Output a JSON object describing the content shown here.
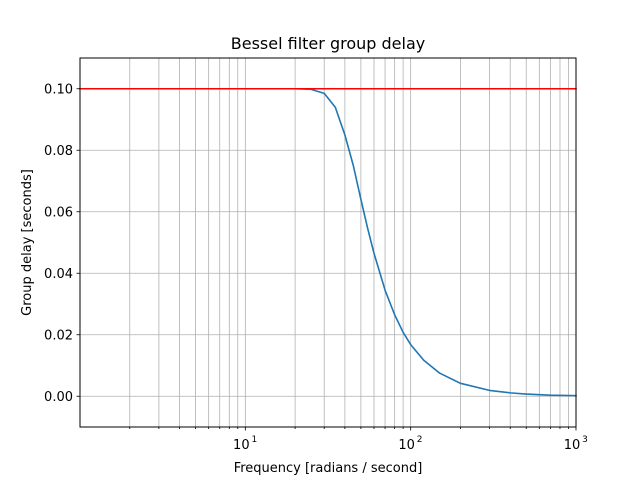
{
  "chart_data": {
    "type": "line",
    "title": "Bessel filter group delay",
    "xlabel": "Frequency [radians / second]",
    "ylabel": "Group delay [seconds]",
    "xscale": "log",
    "xlim": [
      1.0,
      1000
    ],
    "ylim": [
      -0.01,
      0.11
    ],
    "grid": "both (major and minor on x)",
    "x_ticks": [
      {
        "value": 10,
        "base": "10",
        "exp": "1"
      },
      {
        "value": 100,
        "base": "10",
        "exp": "2"
      },
      {
        "value": 1000,
        "base": "10",
        "exp": "3"
      }
    ],
    "y_ticks": [
      {
        "value": 0.0,
        "label": "0.00"
      },
      {
        "value": 0.02,
        "label": "0.02"
      },
      {
        "value": 0.04,
        "label": "0.04"
      },
      {
        "value": 0.06,
        "label": "0.06"
      },
      {
        "value": 0.08,
        "label": "0.08"
      },
      {
        "value": 0.1,
        "label": "0.10"
      }
    ],
    "series": [
      {
        "color": "#1f77b4",
        "x": [
          1.0,
          5,
          10,
          15,
          20,
          25,
          30,
          35,
          40,
          45,
          50,
          55,
          60,
          70,
          80,
          90,
          100,
          120,
          150,
          200,
          300,
          400,
          500,
          700,
          1000
        ],
        "values": [
          0.1,
          0.1,
          0.1,
          0.1,
          0.1,
          0.0998,
          0.0985,
          0.094,
          0.085,
          0.075,
          0.064,
          0.0545,
          0.0465,
          0.0345,
          0.0265,
          0.0208,
          0.0168,
          0.0117,
          0.0075,
          0.0042,
          0.0019,
          0.0011,
          0.0007,
          0.00035,
          0.00018
        ]
      },
      {
        "color": "#ff0000",
        "x": [
          1.0,
          1000
        ],
        "values": [
          0.1,
          0.1
        ]
      }
    ]
  }
}
